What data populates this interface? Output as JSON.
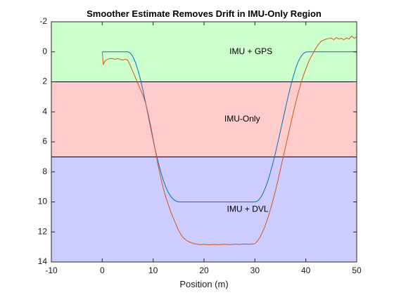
{
  "chart_data": {
    "type": "line",
    "title": "Smoother Estimate Removes Drift in IMU-Only Region",
    "xlabel": "Position (m)",
    "ylabel": "",
    "xlim": [
      -10,
      50
    ],
    "ylim": [
      -2,
      14
    ],
    "y_reversed": true,
    "xticks": [
      -10,
      0,
      10,
      20,
      30,
      40,
      50
    ],
    "yticks": [
      -2,
      0,
      2,
      4,
      6,
      8,
      10,
      12,
      14
    ],
    "regions": [
      {
        "label": "IMU + GPS",
        "y_from": -2,
        "y_to": 2,
        "color": "#ccffcc",
        "label_x": 25,
        "label_y": 0
      },
      {
        "label": "IMU-Only",
        "y_from": 2,
        "y_to": 7,
        "color": "#ffcccc",
        "label_x": 24,
        "label_y": 4.5
      },
      {
        "label": "IMU + DVL",
        "y_from": 7,
        "y_to": 14,
        "color": "#ccccff",
        "label_x": 24.5,
        "label_y": 10.5
      }
    ],
    "region_boundaries": [
      2,
      7
    ],
    "series": [
      {
        "color": "#0072bd",
        "x": [
          0,
          0.5,
          1,
          1.5,
          2,
          2.5,
          3,
          3.5,
          4,
          4.5,
          5,
          5.5,
          6,
          6.5,
          7,
          7.5,
          8,
          8.5,
          9,
          9.5,
          10,
          10.5,
          11,
          11.5,
          12,
          12.5,
          13,
          13.5,
          14,
          14.5,
          15,
          15.5,
          16,
          16.5,
          17,
          17.5,
          18,
          18.5,
          19,
          19.5,
          20,
          22,
          24,
          26,
          28,
          30,
          30.5,
          31,
          31.5,
          32,
          32.5,
          33,
          33.5,
          34,
          34.5,
          35,
          35.5,
          36,
          36.5,
          37,
          37.5,
          38,
          38.5,
          39,
          39.5,
          40,
          40.5,
          41,
          41.5,
          42,
          42.5,
          43,
          43.5,
          44,
          44.5,
          45,
          46,
          47,
          48,
          49,
          50
        ],
        "y": [
          0,
          0,
          0,
          0,
          0,
          0,
          0,
          0,
          0,
          0,
          0,
          0.08,
          0.31,
          0.69,
          1.2,
          1.83,
          2.56,
          3.36,
          4.2,
          5.05,
          5.88,
          6.67,
          7.38,
          8.0,
          8.56,
          9.02,
          9.38,
          9.65,
          9.84,
          9.95,
          10,
          10,
          10,
          10,
          10,
          10,
          10,
          10,
          10,
          10,
          10,
          10,
          10,
          10,
          10,
          10,
          9.94,
          9.77,
          9.49,
          9.11,
          8.64,
          8.09,
          7.46,
          6.78,
          6.05,
          5.29,
          4.52,
          3.76,
          3.02,
          2.32,
          1.68,
          1.12,
          0.66,
          0.33,
          0.12,
          0.02,
          0,
          0,
          0,
          0,
          0,
          0,
          0,
          0,
          0,
          0,
          0,
          0,
          0,
          0,
          0
        ]
      },
      {
        "color": "#d95319",
        "x": [
          0,
          0.2,
          0.4,
          0.6,
          0.8,
          1,
          1.5,
          2,
          2.5,
          3,
          3.5,
          4,
          4.5,
          5,
          5.5,
          6,
          6.5,
          7,
          7.5,
          8,
          8.5,
          9,
          9.5,
          10,
          10.5,
          11,
          11.5,
          12,
          12.5,
          13,
          13.5,
          14,
          14.5,
          15,
          15.5,
          16,
          16.5,
          17,
          17.5,
          18,
          18.5,
          19,
          19.5,
          20,
          21,
          22,
          23,
          24,
          25,
          26,
          27,
          28,
          29,
          30,
          30.5,
          31,
          31.5,
          32,
          32.5,
          33,
          33.5,
          34,
          34.5,
          35,
          35.5,
          36,
          36.5,
          37,
          37.5,
          38,
          38.5,
          39,
          39.5,
          40,
          40.5,
          41,
          41.5,
          42,
          42.5,
          43,
          43.5,
          44,
          44.5,
          45,
          45.5,
          46,
          46.5,
          47,
          47.5,
          48,
          48.5,
          49,
          49.5,
          50
        ],
        "y": [
          0,
          0.85,
          0.7,
          0.6,
          0.55,
          0.5,
          0.45,
          0.45,
          0.5,
          0.45,
          0.5,
          0.55,
          0.5,
          0.55,
          0.9,
          1.3,
          1.7,
          2.1,
          2.5,
          2.9,
          3.4,
          4.1,
          4.9,
          5.8,
          6.7,
          7.6,
          8.4,
          9.1,
          9.7,
          10.2,
          10.7,
          11.1,
          11.5,
          11.9,
          12.2,
          12.4,
          12.55,
          12.65,
          12.72,
          12.77,
          12.8,
          12.83,
          12.85,
          12.82,
          12.86,
          12.83,
          12.85,
          12.82,
          12.84,
          12.81,
          12.83,
          12.8,
          12.82,
          12.78,
          12.6,
          12.35,
          12.0,
          11.6,
          11.1,
          10.55,
          9.95,
          9.3,
          8.6,
          7.85,
          7.1,
          6.35,
          5.6,
          4.85,
          4.1,
          3.4,
          2.75,
          2.15,
          1.6,
          1.15,
          0.7,
          0.35,
          0.05,
          -0.25,
          -0.5,
          -0.7,
          -0.78,
          -0.85,
          -0.88,
          -0.92,
          -0.8,
          -0.95,
          -0.85,
          -0.9,
          -0.8,
          -0.92,
          -0.85,
          -1.05,
          -0.9,
          -1.0
        ]
      }
    ]
  }
}
